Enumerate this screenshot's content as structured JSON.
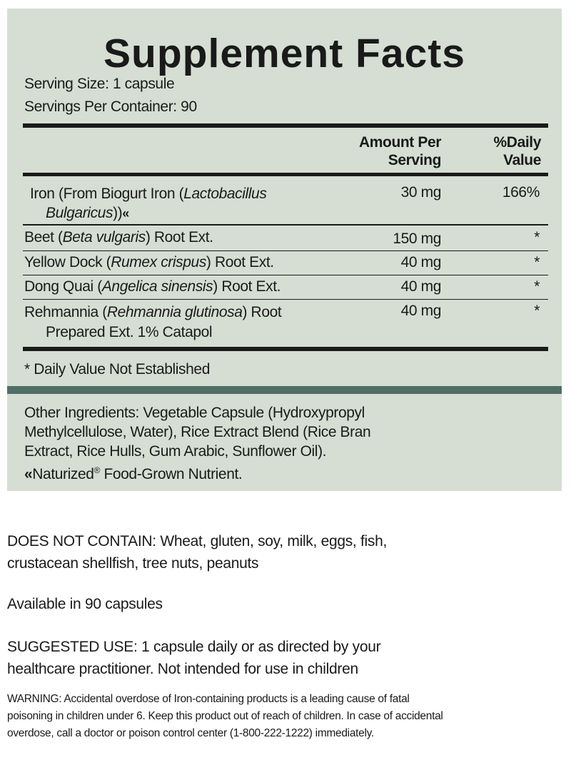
{
  "title": "Supplement Facts",
  "serving_size": "Serving Size: 1 capsule",
  "servings_per_container": "Servings Per Container: 90",
  "header": {
    "amount_1": "Amount Per",
    "amount_2": "Serving",
    "dv_1": "%Daily",
    "dv_2": "Value"
  },
  "rows": [
    {
      "pre": "Iron (From Biogurt Iron (",
      "italic": "Lactobacillus",
      "line2_italic": "Bulgaricus",
      "line2_post": "))",
      "icon": "naturized-double-chevron-icon",
      "amount": "30 mg",
      "dv": "166%"
    },
    {
      "pre": "Beet (",
      "italic": "Beta vulgaris",
      "post": ") Root Ext.",
      "amount": "150 mg",
      "dv": "*"
    },
    {
      "pre": "Yellow Dock (",
      "italic": "Rumex crispus",
      "post": ") Root Ext.",
      "amount": "40 mg",
      "dv": "*"
    },
    {
      "pre": "Dong Quai (",
      "italic": "Angelica sinensis",
      "post": ") Root Ext.",
      "amount": "40 mg",
      "dv": "*"
    },
    {
      "pre": "Rehmannia (",
      "italic": "Rehmannia glutinosa",
      "post": ") Root",
      "line2": "Prepared Ext. 1% Catapol",
      "amount": "40 mg",
      "dv": "*"
    }
  ],
  "footnote": "* Daily Value Not Established",
  "other_ingredients": [
    "Other Ingredients: Vegetable Capsule (Hydroxypropyl",
    "Methylcellulose, Water), Rice Extract Blend (Rice Bran",
    "Extract, Rice Hulls, Gum Arabic, Sunflower Oil)."
  ],
  "naturized": {
    "brand": "Naturized",
    "reg": "®",
    "text": " Food-Grown Nutrient."
  },
  "does_not_contain": [
    "DOES NOT CONTAIN: Wheat, gluten, soy, milk, eggs, fish,",
    "crustacean shellfish, tree nuts, peanuts"
  ],
  "available": "Available in 90 capsules",
  "suggested_use": [
    "SUGGESTED USE: 1 capsule daily or as directed by your",
    "healthcare practitioner. Not intended for use in children"
  ],
  "warning": [
    "WARNING: Accidental overdose of Iron-containing products is a leading cause of fatal",
    "poisoning in children under 6. Keep this product out of reach of children. In case of accidental",
    "overdose, call a doctor or poison control center (1-800-222-1222) immediately."
  ],
  "colors": {
    "panel": "#d6ded3",
    "band": "#4f6e67",
    "text": "#1a1a1a"
  }
}
